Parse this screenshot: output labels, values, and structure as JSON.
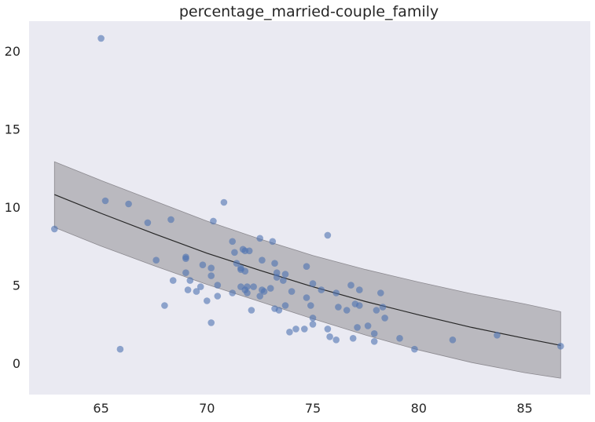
{
  "chart_data": {
    "type": "scatter",
    "title": "percentage_married-couple_family",
    "xlabel": "",
    "ylabel": "",
    "xlim": [
      61.6,
      88.1
    ],
    "ylim": [
      -2.0,
      21.9
    ],
    "xticks": [
      65,
      70,
      75,
      80,
      85
    ],
    "yticks": [
      0,
      5,
      10,
      15,
      20
    ],
    "grid": false,
    "colors": {
      "background": "#eaeaf2",
      "points": "#4c72b0",
      "band": "#aaa8ae",
      "band_edge": "#8c8a90",
      "line": "#262626"
    },
    "points": [
      [
        62.8,
        8.6
      ],
      [
        65.0,
        20.8
      ],
      [
        65.2,
        10.4
      ],
      [
        65.9,
        0.9
      ],
      [
        66.3,
        10.2
      ],
      [
        67.2,
        9.0
      ],
      [
        67.6,
        6.6
      ],
      [
        68.0,
        3.7
      ],
      [
        68.3,
        9.2
      ],
      [
        68.4,
        5.3
      ],
      [
        69.0,
        6.8
      ],
      [
        69.0,
        6.7
      ],
      [
        69.0,
        5.8
      ],
      [
        69.1,
        4.7
      ],
      [
        69.2,
        5.3
      ],
      [
        69.5,
        4.6
      ],
      [
        69.7,
        4.9
      ],
      [
        69.8,
        6.3
      ],
      [
        70.0,
        4.0
      ],
      [
        70.2,
        6.1
      ],
      [
        70.2,
        5.6
      ],
      [
        70.2,
        2.6
      ],
      [
        70.3,
        9.1
      ],
      [
        70.5,
        5.0
      ],
      [
        70.5,
        4.3
      ],
      [
        70.8,
        10.3
      ],
      [
        71.2,
        7.8
      ],
      [
        71.2,
        4.5
      ],
      [
        71.3,
        7.1
      ],
      [
        71.4,
        6.4
      ],
      [
        71.6,
        6.0
      ],
      [
        71.6,
        6.1
      ],
      [
        71.6,
        4.9
      ],
      [
        71.7,
        7.3
      ],
      [
        71.8,
        7.2
      ],
      [
        71.8,
        5.9
      ],
      [
        71.8,
        4.7
      ],
      [
        71.9,
        4.9
      ],
      [
        71.9,
        4.5
      ],
      [
        72.0,
        7.2
      ],
      [
        72.1,
        3.4
      ],
      [
        72.2,
        4.9
      ],
      [
        72.5,
        8.0
      ],
      [
        72.5,
        4.3
      ],
      [
        72.6,
        6.6
      ],
      [
        72.6,
        4.7
      ],
      [
        72.7,
        4.6
      ],
      [
        73.0,
        4.8
      ],
      [
        73.1,
        7.8
      ],
      [
        73.2,
        3.5
      ],
      [
        73.2,
        6.4
      ],
      [
        73.3,
        5.8
      ],
      [
        73.3,
        5.5
      ],
      [
        73.4,
        3.4
      ],
      [
        73.6,
        5.3
      ],
      [
        73.7,
        3.7
      ],
      [
        73.7,
        5.7
      ],
      [
        73.9,
        2.0
      ],
      [
        74.0,
        4.6
      ],
      [
        74.2,
        2.2
      ],
      [
        74.6,
        2.2
      ],
      [
        74.7,
        6.2
      ],
      [
        74.7,
        4.2
      ],
      [
        74.9,
        3.7
      ],
      [
        75.0,
        5.1
      ],
      [
        75.0,
        2.9
      ],
      [
        75.0,
        2.5
      ],
      [
        75.4,
        4.7
      ],
      [
        75.7,
        8.2
      ],
      [
        75.7,
        2.2
      ],
      [
        75.8,
        1.7
      ],
      [
        76.1,
        4.5
      ],
      [
        76.1,
        1.5
      ],
      [
        76.2,
        3.6
      ],
      [
        76.6,
        3.4
      ],
      [
        76.8,
        5.0
      ],
      [
        76.9,
        1.6
      ],
      [
        77.0,
        3.8
      ],
      [
        77.1,
        2.3
      ],
      [
        77.2,
        3.7
      ],
      [
        77.2,
        4.7
      ],
      [
        77.6,
        2.4
      ],
      [
        77.9,
        1.9
      ],
      [
        77.9,
        1.4
      ],
      [
        78.0,
        3.4
      ],
      [
        78.2,
        4.5
      ],
      [
        78.3,
        3.6
      ],
      [
        78.4,
        2.9
      ],
      [
        79.1,
        1.6
      ],
      [
        79.8,
        0.9
      ],
      [
        81.6,
        1.5
      ],
      [
        83.7,
        1.8
      ],
      [
        86.7,
        1.1
      ]
    ],
    "fit": {
      "x": [
        62.8,
        65,
        67.5,
        70,
        72.5,
        75,
        77.5,
        80,
        82.5,
        85,
        86.7
      ],
      "y": [
        10.8,
        9.6,
        8.3,
        7.05,
        5.95,
        4.9,
        3.95,
        3.1,
        2.3,
        1.6,
        1.15
      ]
    },
    "band": {
      "x": [
        62.8,
        65,
        67.5,
        70,
        72.5,
        75,
        77.5,
        80,
        82.5,
        85,
        86.7
      ],
      "lower": [
        8.7,
        7.5,
        6.25,
        5.05,
        3.95,
        2.85,
        1.8,
        0.85,
        0.05,
        -0.6,
        -0.95
      ],
      "upper": [
        12.9,
        11.7,
        10.4,
        9.1,
        7.95,
        6.9,
        6.0,
        5.2,
        4.45,
        3.8,
        3.3
      ]
    }
  }
}
